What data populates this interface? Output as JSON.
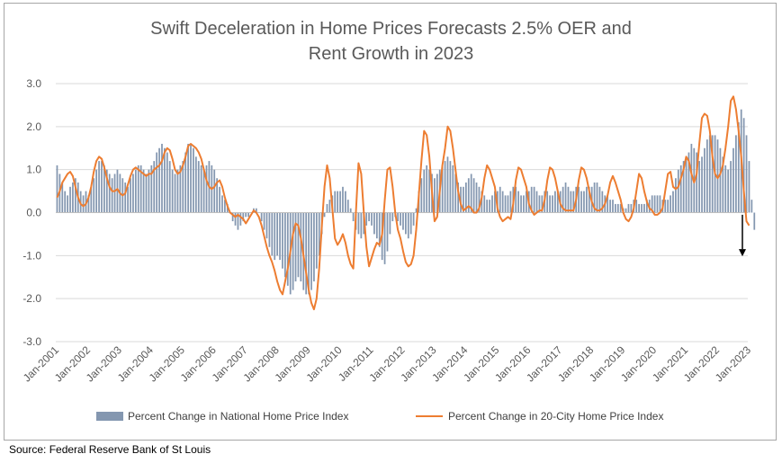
{
  "source": "Source: Federal Reserve Bank of St Louis",
  "chart_data": {
    "type": "bar+line",
    "title_lines": [
      "Swift Deceleration in Home Prices Forecasts 2.5% OER and",
      "Rent Growth in 2023"
    ],
    "ylim": [
      -3.0,
      3.0
    ],
    "yticks": [
      "3.0",
      "2.0",
      "1.0",
      "0.0",
      "-1.0",
      "-2.0",
      "-3.0"
    ],
    "ytick_values": [
      3,
      2,
      1,
      0,
      -1,
      -2,
      -3
    ],
    "xticks": [
      "Jan-2001",
      "Jan-2002",
      "Jan-2003",
      "Jan-2004",
      "Jan-2005",
      "Jan-2006",
      "Jan-2007",
      "Jan-2008",
      "Jan-2009",
      "Jan-2010",
      "Jan-2011",
      "Jan-2012",
      "Jan-2013",
      "Jan-2014",
      "Jan-2015",
      "Jan-2016",
      "Jan-2017",
      "Jan-2018",
      "Jan-2019",
      "Jan-2020",
      "Jan-2021",
      "Jan-2022",
      "Jan-2023"
    ],
    "x_start": "Jan-2001",
    "x_end": "Jan-2023",
    "grid": "horizontal",
    "legend_position": "bottom",
    "annotation": "down-arrow at end of series",
    "colors": {
      "bars": "#8497b0",
      "line": "#ed7d31"
    },
    "series": [
      {
        "name": "Percent Change in National Home Price Index",
        "kind": "bar",
        "yearly_monthly_values": [
          [
            1.1,
            0.9,
            0.7,
            0.5,
            0.4,
            0.6,
            0.7,
            0.8,
            0.7,
            0.5,
            0.4,
            0.5
          ],
          [
            0.4,
            0.6,
            0.8,
            1.0,
            1.2,
            1.2,
            1.1,
            1.0,
            0.9,
            0.8,
            0.9,
            1.0
          ],
          [
            0.9,
            0.8,
            0.7,
            0.6,
            0.8,
            0.9,
            1.0,
            1.1,
            1.1,
            1.0,
            0.9,
            1.0
          ],
          [
            1.1,
            1.2,
            1.4,
            1.5,
            1.6,
            1.5,
            1.4,
            1.2,
            1.0,
            0.9,
            1.0,
            1.1
          ],
          [
            1.2,
            1.4,
            1.6,
            1.6,
            1.5,
            1.3,
            1.2,
            1.1,
            1.0,
            1.1,
            1.2,
            1.1
          ],
          [
            1.0,
            0.8,
            0.6,
            0.4,
            0.3,
            0.2,
            0.0,
            -0.2,
            -0.3,
            -0.4,
            -0.3,
            -0.2
          ],
          [
            -0.1,
            -0.1,
            0.0,
            0.1,
            0.1,
            0.0,
            -0.2,
            -0.4,
            -0.6,
            -0.8,
            -1.0,
            -1.1
          ],
          [
            -1.0,
            -1.1,
            -1.3,
            -1.5,
            -1.7,
            -1.9,
            -1.8,
            -1.6,
            -1.5,
            -1.6,
            -1.8,
            -1.9
          ],
          [
            -1.9,
            -1.8,
            -1.6,
            -1.3,
            -1.0,
            -0.5,
            -0.1,
            0.2,
            0.3,
            0.4,
            0.5,
            0.5
          ],
          [
            0.5,
            0.6,
            0.5,
            0.3,
            0.1,
            -0.2,
            -0.4,
            -0.5,
            -0.6,
            -0.5,
            -0.3,
            -0.2
          ],
          [
            -0.3,
            -0.5,
            -0.6,
            -0.8,
            -1.1,
            -1.2,
            -0.9,
            -0.5,
            -0.2,
            -0.1,
            -0.2,
            -0.3
          ],
          [
            -0.4,
            -0.5,
            -0.6,
            -0.5,
            -0.3,
            0.1,
            0.5,
            0.8,
            1.0,
            1.1,
            1.0,
            0.9
          ],
          [
            0.8,
            0.9,
            1.0,
            1.1,
            1.2,
            1.3,
            1.2,
            1.1,
            0.9,
            0.7,
            0.6,
            0.6
          ],
          [
            0.7,
            0.8,
            0.9,
            0.8,
            0.7,
            0.6,
            0.5,
            0.4,
            0.3,
            0.3,
            0.4,
            0.5
          ],
          [
            0.5,
            0.6,
            0.5,
            0.4,
            0.4,
            0.5,
            0.6,
            0.6,
            0.5,
            0.4,
            0.4,
            0.5
          ],
          [
            0.5,
            0.6,
            0.6,
            0.5,
            0.4,
            0.4,
            0.5,
            0.5,
            0.4,
            0.4,
            0.5,
            0.5
          ],
          [
            0.5,
            0.6,
            0.7,
            0.6,
            0.5,
            0.5,
            0.6,
            0.6,
            0.5,
            0.5,
            0.6,
            0.6
          ],
          [
            0.6,
            0.7,
            0.7,
            0.6,
            0.5,
            0.4,
            0.4,
            0.3,
            0.3,
            0.2,
            0.2,
            0.2
          ],
          [
            0.1,
            0.1,
            0.2,
            0.2,
            0.3,
            0.3,
            0.2,
            0.2,
            0.2,
            0.3,
            0.3,
            0.4
          ],
          [
            0.4,
            0.4,
            0.4,
            0.3,
            0.3,
            0.3,
            0.4,
            0.5,
            0.8,
            1.0,
            1.1,
            1.2
          ],
          [
            1.3,
            1.4,
            1.6,
            1.5,
            1.4,
            1.2,
            1.3,
            1.5,
            1.7,
            1.8,
            1.8,
            1.8
          ],
          [
            1.7,
            1.5,
            1.3,
            1.1,
            1.0,
            1.2,
            1.5,
            1.8,
            2.1,
            2.4,
            2.2,
            1.8
          ],
          [
            1.2,
            0.3,
            -0.4
          ]
        ]
      },
      {
        "name": "Percent Change in 20-City Home Price Index",
        "kind": "line",
        "yearly_monthly_values": [
          [
            0.35,
            0.5,
            0.7,
            0.8,
            0.9,
            0.95,
            0.85,
            0.6,
            0.35,
            0.2,
            0.15,
            0.2
          ],
          [
            0.35,
            0.6,
            0.95,
            1.2,
            1.3,
            1.25,
            1.05,
            0.8,
            0.6,
            0.5,
            0.5,
            0.55
          ],
          [
            0.45,
            0.4,
            0.45,
            0.65,
            0.85,
            1.0,
            1.05,
            1.0,
            0.95,
            0.9,
            0.85,
            0.9
          ],
          [
            0.9,
            1.0,
            1.05,
            1.1,
            1.2,
            1.4,
            1.5,
            1.45,
            1.25,
            1.0,
            0.9,
            0.95
          ],
          [
            1.1,
            1.3,
            1.55,
            1.6,
            1.55,
            1.5,
            1.4,
            1.25,
            1.0,
            0.75,
            0.6,
            0.55
          ],
          [
            0.6,
            0.7,
            0.75,
            0.6,
            0.35,
            0.15,
            0.0,
            -0.05,
            -0.1,
            -0.05,
            -0.1,
            -0.15
          ],
          [
            -0.25,
            -0.15,
            -0.05,
            0.05,
            0.0,
            -0.1,
            -0.3,
            -0.55,
            -0.8,
            -1.0,
            -1.15,
            -1.35
          ],
          [
            -1.6,
            -1.8,
            -1.9,
            -1.6,
            -1.3,
            -0.9,
            -0.5,
            -0.25,
            -0.3,
            -0.6,
            -1.0,
            -1.4
          ],
          [
            -1.8,
            -2.1,
            -2.25,
            -2.0,
            -1.3,
            -0.3,
            0.6,
            1.1,
            0.8,
            0.1,
            -0.6,
            -0.75
          ],
          [
            -0.65,
            -0.5,
            -0.7,
            -1.0,
            -1.2,
            -1.3,
            0.0,
            1.15,
            0.9,
            0.0,
            -0.8,
            -1.25
          ],
          [
            -1.05,
            -0.85,
            -0.7,
            -0.75,
            -0.5,
            0.3,
            1.0,
            1.05,
            0.6,
            0.0,
            -0.4,
            -0.6
          ],
          [
            -0.9,
            -1.15,
            -1.25,
            -1.2,
            -1.0,
            -0.4,
            0.4,
            1.2,
            1.9,
            1.8,
            1.3,
            0.5
          ],
          [
            -0.2,
            -0.1,
            0.5,
            1.1,
            1.5,
            2.0,
            1.9,
            1.5,
            1.0,
            0.5,
            0.2,
            0.05
          ],
          [
            0.1,
            0.15,
            0.1,
            0.0,
            0.0,
            0.1,
            0.35,
            0.8,
            1.1,
            1.0,
            0.8,
            0.6
          ],
          [
            0.1,
            -0.1,
            -0.2,
            -0.15,
            -0.1,
            -0.15,
            0.2,
            0.75,
            1.05,
            1.0,
            0.8,
            0.6
          ],
          [
            0.2,
            0.05,
            -0.05,
            0.0,
            0.05,
            0.05,
            0.3,
            0.75,
            1.05,
            1.0,
            0.8,
            0.5
          ],
          [
            0.2,
            0.1,
            0.05,
            0.05,
            0.05,
            0.05,
            0.3,
            0.75,
            1.05,
            1.0,
            0.8,
            0.5
          ],
          [
            0.25,
            0.1,
            0.05,
            0.05,
            0.1,
            0.2,
            0.4,
            0.7,
            0.85,
            0.7,
            0.5,
            0.3
          ],
          [
            0.0,
            -0.15,
            -0.2,
            -0.1,
            0.1,
            0.5,
            0.9,
            0.8,
            0.5,
            0.25,
            0.1,
            0.05
          ],
          [
            -0.05,
            -0.05,
            0.0,
            0.1,
            0.5,
            0.9,
            0.95,
            0.6,
            0.55,
            0.6,
            0.8,
            1.0
          ],
          [
            1.3,
            1.2,
            0.9,
            0.7,
            0.9,
            1.6,
            2.2,
            2.3,
            2.25,
            1.9,
            1.3,
            0.9
          ],
          [
            0.8,
            0.9,
            1.1,
            1.5,
            2.0,
            2.6,
            2.7,
            2.4,
            1.9,
            1.3,
            0.5,
            -0.2
          ],
          [
            -0.3
          ]
        ]
      }
    ]
  }
}
